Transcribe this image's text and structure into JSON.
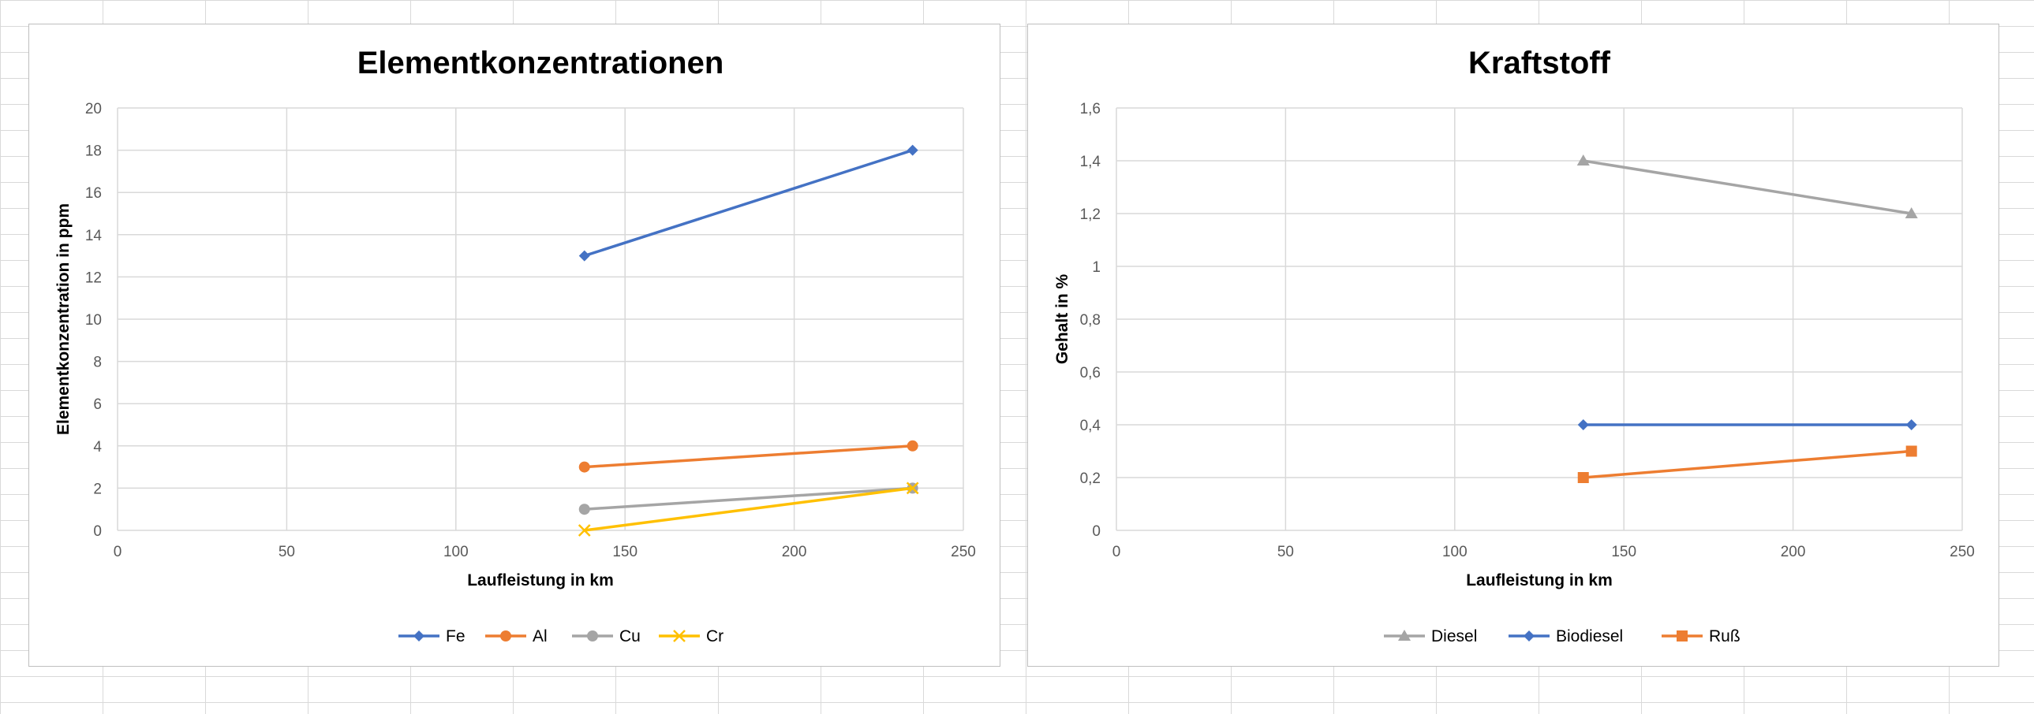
{
  "chart_data": [
    {
      "type": "line",
      "title": "Elementkonzentrationen",
      "xlabel": "Laufleistung in km",
      "ylabel": "Elementkonzentration in ppm",
      "xlim": [
        0,
        250
      ],
      "ylim": [
        0,
        20
      ],
      "x_ticks": [
        "0",
        "50",
        "100",
        "150",
        "200",
        "250"
      ],
      "y_ticks": [
        "0",
        "2",
        "4",
        "6",
        "8",
        "10",
        "12",
        "14",
        "16",
        "18",
        "20"
      ],
      "x_tick_values": [
        0,
        50,
        100,
        150,
        200,
        250
      ],
      "y_tick_values": [
        0,
        2,
        4,
        6,
        8,
        10,
        12,
        14,
        16,
        18,
        20
      ],
      "grid": true,
      "legend_position": "bottom",
      "series": [
        {
          "name": "Fe",
          "color": "#4472c4",
          "marker": "diamond",
          "x": [
            138,
            235
          ],
          "y": [
            13,
            18
          ]
        },
        {
          "name": "Al",
          "color": "#ed7d31",
          "marker": "circle",
          "x": [
            138,
            235
          ],
          "y": [
            3,
            4
          ]
        },
        {
          "name": "Cu",
          "color": "#a5a5a5",
          "marker": "circle",
          "x": [
            138,
            235
          ],
          "y": [
            1,
            2
          ]
        },
        {
          "name": "Cr",
          "color": "#ffc000",
          "marker": "x",
          "x": [
            138,
            235
          ],
          "y": [
            0,
            2
          ]
        }
      ]
    },
    {
      "type": "line",
      "title": "Kraftstoff",
      "xlabel": "Laufleistung in km",
      "ylabel": "Gehalt in %",
      "xlim": [
        0,
        250
      ],
      "ylim": [
        0,
        1.6
      ],
      "x_ticks": [
        "0",
        "50",
        "100",
        "150",
        "200",
        "250"
      ],
      "y_ticks": [
        "0",
        "0,2",
        "0,4",
        "0,6",
        "0,8",
        "1",
        "1,2",
        "1,4",
        "1,6"
      ],
      "x_tick_values": [
        0,
        50,
        100,
        150,
        200,
        250
      ],
      "y_tick_values": [
        0,
        0.2,
        0.4,
        0.6,
        0.8,
        1,
        1.2,
        1.4,
        1.6
      ],
      "grid": true,
      "legend_position": "bottom",
      "series": [
        {
          "name": "Diesel",
          "color": "#a5a5a5",
          "marker": "triangle",
          "x": [
            138,
            235
          ],
          "y": [
            1.4,
            1.2
          ]
        },
        {
          "name": "Biodiesel",
          "color": "#4472c4",
          "marker": "diamond",
          "x": [
            138,
            235
          ],
          "y": [
            0.4,
            0.4
          ]
        },
        {
          "name": "Ruß",
          "color": "#ed7d31",
          "marker": "square",
          "x": [
            138,
            235
          ],
          "y": [
            0.2,
            0.3
          ]
        }
      ]
    }
  ]
}
